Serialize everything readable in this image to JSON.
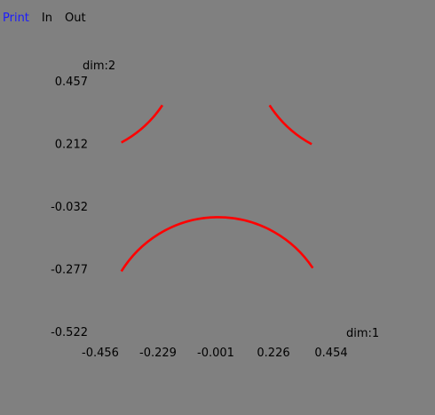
{
  "menu": {
    "items": [
      {
        "label": "Print",
        "active": true
      },
      {
        "label": "In",
        "active": false
      },
      {
        "label": "Out",
        "active": false
      }
    ],
    "active_color": "#1a1aff"
  },
  "chart_data": {
    "type": "line",
    "background": "#808080",
    "series": [
      {
        "color": "#ff0000",
        "shape": "circle",
        "center": [
          0.0,
          -0.032
        ],
        "radius": 0.45,
        "arcs_visible_deg": [
          [
            33,
            62
          ],
          [
            118,
            146
          ],
          [
            214,
            328
          ]
        ]
      }
    ],
    "xlabel": "dim:1",
    "ylabel": "dim:2",
    "x_ticks": [
      "-0.456",
      "-0.229",
      "-0.001",
      "0.226",
      "0.454"
    ],
    "y_ticks": [
      "0.457",
      "0.212",
      "-0.032",
      "-0.277",
      "-0.522"
    ],
    "xlim": [
      -0.456,
      0.454
    ],
    "ylim": [
      -0.522,
      0.457
    ],
    "grid": false
  }
}
